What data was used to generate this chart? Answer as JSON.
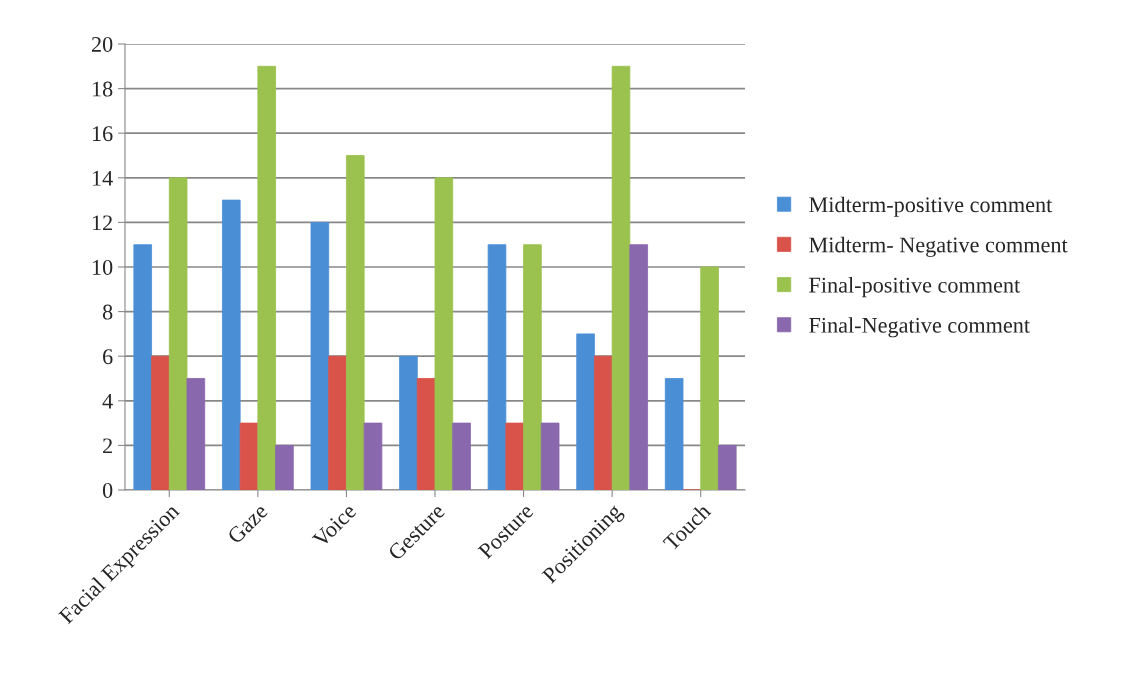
{
  "chart_data": {
    "type": "bar",
    "categories": [
      "Facial Expression",
      "Gaze",
      "Voice",
      "Gesture",
      "Posture",
      "Positioning",
      "Touch"
    ],
    "series": [
      {
        "name": "Midterm-positive comment",
        "color": "#4a8fd6",
        "values": [
          11,
          13,
          12,
          6,
          11,
          7,
          5
        ]
      },
      {
        "name": "Midterm- Negative comment",
        "color": "#d9534a",
        "values": [
          6,
          3,
          6,
          5,
          3,
          6,
          0
        ]
      },
      {
        "name": "Final-positive comment",
        "color": "#9bc24f",
        "values": [
          14,
          19,
          15,
          14,
          11,
          19,
          10
        ]
      },
      {
        "name": "Final-Negative comment",
        "color": "#8a68ad",
        "values": [
          5,
          2,
          3,
          3,
          3,
          11,
          2
        ]
      }
    ],
    "ylim": [
      0,
      20
    ],
    "yticks": [
      0,
      2,
      4,
      6,
      8,
      10,
      12,
      14,
      16,
      18,
      20
    ],
    "grid": "y",
    "legend": "right"
  }
}
